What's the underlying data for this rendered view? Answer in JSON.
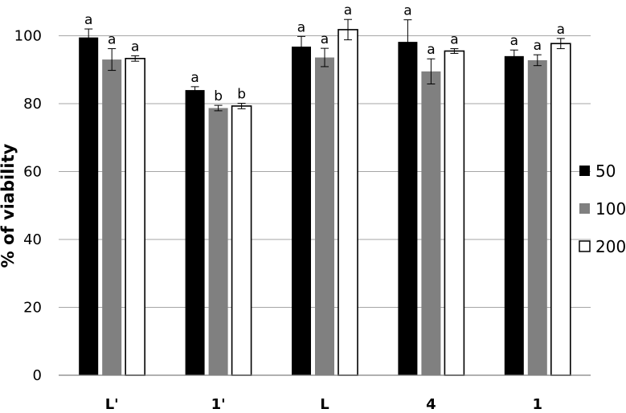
{
  "chart_data": {
    "type": "bar",
    "title": "",
    "xlabel": "",
    "ylabel": "% of viability",
    "ylim": [
      0,
      100
    ],
    "yticks": [
      0,
      20,
      40,
      60,
      80,
      100
    ],
    "grid": true,
    "legend_position": "right",
    "categories": [
      "L'",
      "1'",
      "L",
      "4",
      "1"
    ],
    "series": [
      {
        "name": "50",
        "color": "#000000",
        "values": [
          99.5,
          84,
          96.8,
          98.2,
          94
        ],
        "errors": [
          2.5,
          1,
          3,
          6.5,
          1.8
        ],
        "labels": [
          "a",
          "a",
          "a",
          "a",
          "a"
        ]
      },
      {
        "name": "100",
        "color": "#808080",
        "values": [
          93,
          78.7,
          93.6,
          89.5,
          92.8
        ],
        "errors": [
          3.2,
          0.8,
          2.7,
          3.7,
          1.6
        ],
        "labels": [
          "a",
          "b",
          "a",
          "a",
          "a"
        ]
      },
      {
        "name": "200",
        "color": "#ffffff",
        "values": [
          93.3,
          79.3,
          101.8,
          95.5,
          97.7
        ],
        "errors": [
          0.8,
          0.8,
          3,
          0.7,
          1.5
        ],
        "labels": [
          "a",
          "b",
          "a",
          "a",
          "a"
        ]
      }
    ]
  }
}
